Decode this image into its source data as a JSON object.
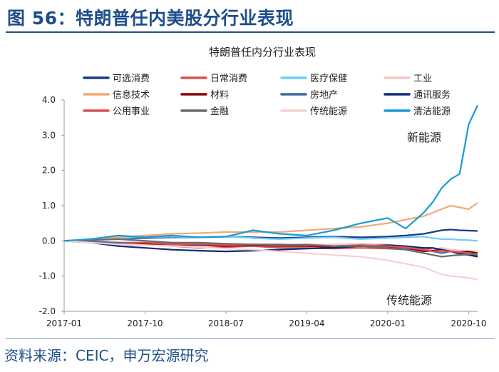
{
  "figure_title": "图 56：特朗普任内美股分行业表现",
  "source_note": "资料来源：CEIC，申万宏源研究",
  "chart_data": {
    "type": "line",
    "title": "特朗普任内分行业表现",
    "xlabel": "",
    "ylabel": "",
    "ylim": [
      -2.0,
      4.0
    ],
    "yticks": [
      "4.0",
      "3.0",
      "2.0",
      "1.0",
      "0.0",
      "-1.0",
      "-2.0"
    ],
    "xticks": [
      "2017-01",
      "2017-10",
      "2018-07",
      "2019-04",
      "2020-01",
      "2020-10"
    ],
    "x_months": [
      0,
      3,
      6,
      9,
      12,
      15,
      18,
      21,
      24,
      27,
      30,
      33,
      36,
      38,
      40,
      41,
      42,
      43,
      44,
      45,
      46
    ],
    "series": [
      {
        "name": "可选消费",
        "color": "#1a3a8c",
        "values": [
          0,
          0.02,
          0.05,
          0.08,
          0.1,
          0.1,
          0.12,
          0.1,
          0.08,
          0.1,
          0.12,
          0.1,
          0.12,
          0.15,
          0.2,
          0.25,
          0.3,
          0.32,
          0.3,
          0.29,
          0.28
        ]
      },
      {
        "name": "日常消费",
        "color": "#d9534f",
        "values": [
          0,
          -0.05,
          -0.1,
          -0.12,
          -0.15,
          -0.2,
          -0.18,
          -0.15,
          -0.2,
          -0.2,
          -0.22,
          -0.2,
          -0.22,
          -0.25,
          -0.2,
          -0.25,
          -0.3,
          -0.25,
          -0.28,
          -0.3,
          -0.32
        ]
      },
      {
        "name": "医疗保健",
        "color": "#6ecff6",
        "values": [
          0,
          0.05,
          0.08,
          0.1,
          0.12,
          0.1,
          0.12,
          0.08,
          0.05,
          0.08,
          0.1,
          0.05,
          0.08,
          0.1,
          0.12,
          0.08,
          0.05,
          0.05,
          0.03,
          0.02,
          0.0
        ]
      },
      {
        "name": "工业",
        "color": "#f4c6c6",
        "values": [
          0,
          0.0,
          0.05,
          0.0,
          -0.05,
          -0.05,
          -0.08,
          -0.1,
          -0.15,
          -0.1,
          -0.1,
          -0.08,
          -0.1,
          -0.15,
          -0.3,
          -0.25,
          -0.2,
          -0.25,
          -0.28,
          -0.3,
          -0.3
        ]
      },
      {
        "name": "信息技术",
        "color": "#f2a977",
        "values": [
          0,
          0.05,
          0.1,
          0.15,
          0.2,
          0.22,
          0.25,
          0.25,
          0.25,
          0.3,
          0.35,
          0.4,
          0.5,
          0.6,
          0.7,
          0.8,
          0.9,
          1.0,
          0.95,
          0.9,
          1.08
        ]
      },
      {
        "name": "材料",
        "color": "#8b0000",
        "values": [
          0,
          -0.03,
          -0.05,
          -0.08,
          -0.1,
          -0.12,
          -0.15,
          -0.12,
          -0.15,
          -0.15,
          -0.18,
          -0.15,
          -0.18,
          -0.2,
          -0.3,
          -0.28,
          -0.25,
          -0.3,
          -0.32,
          -0.3,
          -0.35
        ]
      },
      {
        "name": "房地产",
        "color": "#3b6a9c",
        "values": [
          0,
          -0.02,
          -0.05,
          -0.05,
          -0.08,
          -0.1,
          -0.12,
          -0.1,
          -0.12,
          -0.12,
          -0.15,
          -0.12,
          -0.15,
          -0.2,
          -0.25,
          -0.3,
          -0.35,
          -0.3,
          -0.38,
          -0.4,
          -0.42
        ]
      },
      {
        "name": "通讯服务",
        "color": "#0b2a7a",
        "values": [
          0,
          -0.05,
          -0.15,
          -0.2,
          -0.25,
          -0.28,
          -0.3,
          -0.28,
          -0.25,
          -0.22,
          -0.2,
          -0.15,
          -0.12,
          -0.15,
          -0.2,
          -0.2,
          -0.25,
          -0.3,
          -0.35,
          -0.4,
          -0.45
        ]
      },
      {
        "name": "公用事业",
        "color": "#e05050",
        "values": [
          0,
          -0.05,
          -0.08,
          -0.05,
          -0.1,
          -0.08,
          -0.12,
          -0.1,
          -0.12,
          -0.1,
          -0.15,
          -0.12,
          -0.15,
          -0.18,
          -0.25,
          -0.3,
          -0.28,
          -0.3,
          -0.32,
          -0.35,
          -0.38
        ]
      },
      {
        "name": "金融",
        "color": "#6b6b6b",
        "values": [
          0,
          0.02,
          0.05,
          0.0,
          -0.05,
          -0.05,
          -0.08,
          -0.1,
          -0.1,
          -0.12,
          -0.15,
          -0.15,
          -0.2,
          -0.25,
          -0.35,
          -0.4,
          -0.45,
          -0.42,
          -0.4,
          -0.38,
          -0.36
        ]
      },
      {
        "name": "传统能源",
        "color": "#f8d0d0",
        "values": [
          0,
          -0.05,
          -0.1,
          -0.12,
          -0.15,
          -0.18,
          -0.22,
          -0.25,
          -0.3,
          -0.35,
          -0.4,
          -0.45,
          -0.55,
          -0.65,
          -0.75,
          -0.85,
          -0.95,
          -1.0,
          -1.02,
          -1.05,
          -1.1
        ]
      },
      {
        "name": "清洁能源",
        "color": "#1a9ad6",
        "values": [
          0,
          0.05,
          0.15,
          0.1,
          0.15,
          0.1,
          0.12,
          0.3,
          0.2,
          0.15,
          0.3,
          0.5,
          0.65,
          0.35,
          0.8,
          1.1,
          1.5,
          1.75,
          1.9,
          3.3,
          3.85
        ]
      }
    ],
    "annotations": [
      {
        "text": "新能源",
        "near_series": "清洁能源"
      },
      {
        "text": "传统能源",
        "near_series": "传统能源"
      }
    ]
  }
}
